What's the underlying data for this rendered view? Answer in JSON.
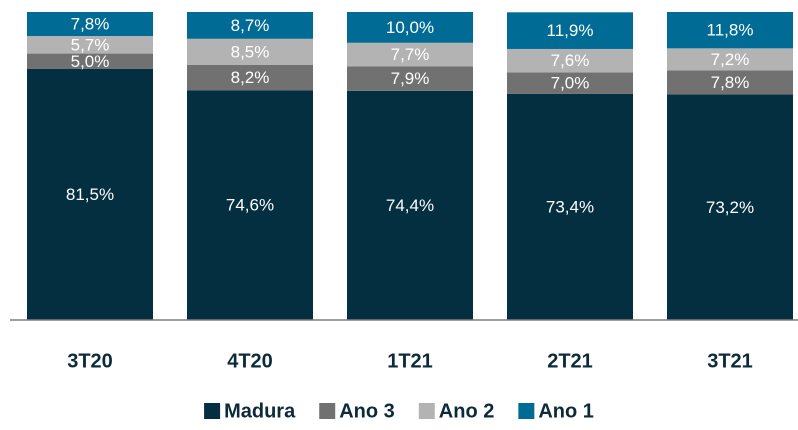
{
  "chart_data": {
    "type": "stacked_bar",
    "categories": [
      "3T20",
      "4T20",
      "1T21",
      "2T21",
      "3T21"
    ],
    "ylim": [
      0,
      100
    ],
    "series": [
      {
        "name": "Madura",
        "color": "#032f40",
        "values": [
          81.5,
          74.6,
          74.4,
          73.4,
          73.2
        ],
        "value_labels": [
          "81,5%",
          "74,6%",
          "74,4%",
          "73,4%",
          "73,2%"
        ]
      },
      {
        "name": "Ano 3",
        "color": "#717171",
        "values": [
          5.0,
          8.2,
          7.9,
          7.0,
          7.8
        ],
        "value_labels": [
          "5,0%",
          "8,2%",
          "7,9%",
          "7,0%",
          "7,8%"
        ]
      },
      {
        "name": "Ano 2",
        "color": "#b3b3b3",
        "values": [
          5.7,
          8.5,
          7.7,
          7.6,
          7.2
        ],
        "value_labels": [
          "5,7%",
          "8,5%",
          "7,7%",
          "7,6%",
          "7,2%"
        ]
      },
      {
        "name": "Ano 1",
        "color": "#006b95",
        "values": [
          7.8,
          8.7,
          10.0,
          11.9,
          11.8
        ],
        "value_labels": [
          "7,8%",
          "8,7%",
          "10,0%",
          "11,9%",
          "11,8%"
        ]
      }
    ]
  }
}
